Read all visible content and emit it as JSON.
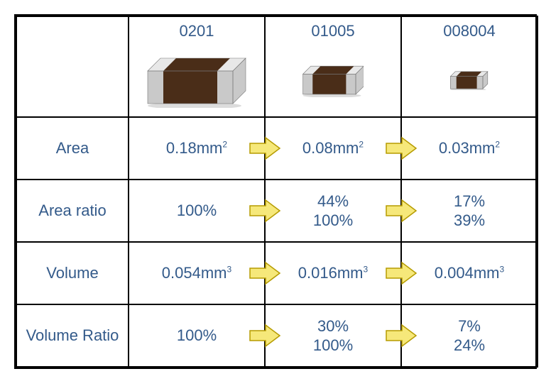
{
  "headers": {
    "c1": "0201",
    "c2": "01005",
    "c3": "008004"
  },
  "rows": {
    "area": {
      "label": "Area",
      "c1": "0.18mm",
      "c2": "0.08mm",
      "c3": "0.03mm",
      "sup": "2"
    },
    "area_ratio": {
      "label": "Area ratio",
      "c1": "100%",
      "c2a": "44%",
      "c2b": "100%",
      "c3a": "17%",
      "c3b": "39%"
    },
    "volume": {
      "label": "Volume",
      "c1": "0.054mm",
      "c2": "0.016mm",
      "c3": "0.004mm",
      "sup": "3"
    },
    "volume_ratio": {
      "label": "Volume Ratio",
      "c1": "100%",
      "c2a": "30%",
      "c2b": "100%",
      "c3a": "7%",
      "c3b": "24%"
    }
  },
  "style": {
    "text_color": "#335a8a",
    "arrow_fill": "#f6e87a",
    "arrow_stroke": "#b59b00",
    "cap_body": "#4a2d18",
    "cap_end": "#c9c9c9",
    "cap_end_light": "#e8e8e8",
    "cap_shadow": "#9a9a9a"
  },
  "cap_sizes": {
    "c1": 1.0,
    "c2": 0.62,
    "c3": 0.38
  }
}
